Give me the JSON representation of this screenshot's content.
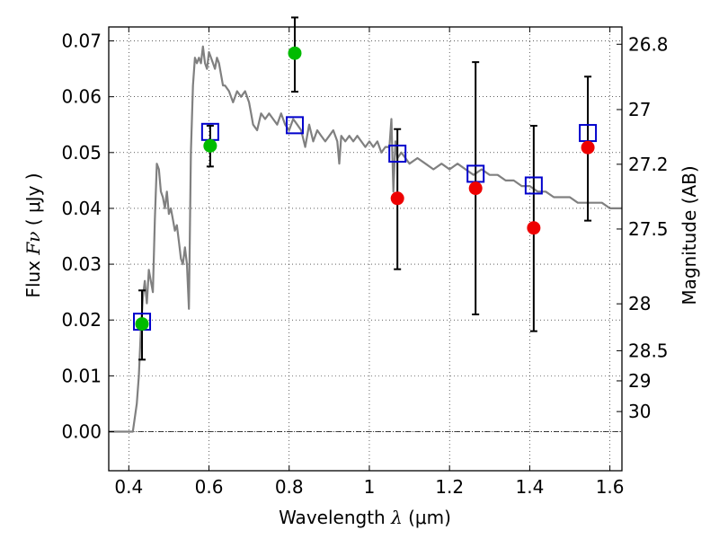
{
  "chart_data": {
    "type": "scatter",
    "xlabel": {
      "prefix": "Wavelength  ",
      "symbol": "λ",
      "units": "(μm)"
    },
    "ylabel": {
      "prefix": "Flux  ",
      "symbol": "Fν",
      "units": "( μJy )"
    },
    "y2label": "Magnitude (AB)",
    "xlim": [
      0.35,
      1.63
    ],
    "ylim": [
      -0.007,
      0.0725
    ],
    "grid": true,
    "xticks": [
      {
        "v": 0.4,
        "label": "0.4"
      },
      {
        "v": 0.6,
        "label": "0.6"
      },
      {
        "v": 0.8,
        "label": "0.8"
      },
      {
        "v": 1.0,
        "label": "1"
      },
      {
        "v": 1.2,
        "label": "1.2"
      },
      {
        "v": 1.4,
        "label": "1.4"
      },
      {
        "v": 1.6,
        "label": "1.6"
      }
    ],
    "yticks": [
      {
        "v": 0.0,
        "label": "0.00"
      },
      {
        "v": 0.01,
        "label": "0.01"
      },
      {
        "v": 0.02,
        "label": "0.02"
      },
      {
        "v": 0.03,
        "label": "0.03"
      },
      {
        "v": 0.04,
        "label": "0.04"
      },
      {
        "v": 0.05,
        "label": "0.05"
      },
      {
        "v": 0.06,
        "label": "0.06"
      },
      {
        "v": 0.07,
        "label": "0.07"
      }
    ],
    "magnitude_ticks": [
      {
        "v": 0.0694,
        "label": "26.8"
      },
      {
        "v": 0.0577,
        "label": "27"
      },
      {
        "v": 0.0479,
        "label": "27.2"
      },
      {
        "v": 0.0363,
        "label": "27.5"
      },
      {
        "v": 0.0229,
        "label": "28"
      },
      {
        "v": 0.0145,
        "label": "28.5"
      },
      {
        "v": 0.0091,
        "label": "29"
      },
      {
        "v": 0.0036,
        "label": "30"
      }
    ],
    "series": [
      {
        "kind": "line",
        "color": "#808080",
        "points": [
          [
            0.35,
            0.0
          ],
          [
            0.4,
            0.0
          ],
          [
            0.41,
            0.0
          ],
          [
            0.42,
            0.005
          ],
          [
            0.425,
            0.01
          ],
          [
            0.43,
            0.018
          ],
          [
            0.435,
            0.024
          ],
          [
            0.44,
            0.027
          ],
          [
            0.445,
            0.023
          ],
          [
            0.45,
            0.029
          ],
          [
            0.455,
            0.027
          ],
          [
            0.46,
            0.025
          ],
          [
            0.465,
            0.038
          ],
          [
            0.47,
            0.048
          ],
          [
            0.475,
            0.047
          ],
          [
            0.48,
            0.043
          ],
          [
            0.485,
            0.042
          ],
          [
            0.49,
            0.04
          ],
          [
            0.495,
            0.043
          ],
          [
            0.5,
            0.039
          ],
          [
            0.505,
            0.04
          ],
          [
            0.51,
            0.038
          ],
          [
            0.515,
            0.036
          ],
          [
            0.52,
            0.037
          ],
          [
            0.525,
            0.034
          ],
          [
            0.53,
            0.031
          ],
          [
            0.535,
            0.03
          ],
          [
            0.54,
            0.033
          ],
          [
            0.545,
            0.03
          ],
          [
            0.55,
            0.022
          ],
          [
            0.555,
            0.05
          ],
          [
            0.56,
            0.062
          ],
          [
            0.565,
            0.067
          ],
          [
            0.57,
            0.066
          ],
          [
            0.575,
            0.067
          ],
          [
            0.58,
            0.066
          ],
          [
            0.585,
            0.069
          ],
          [
            0.59,
            0.066
          ],
          [
            0.595,
            0.065
          ],
          [
            0.6,
            0.068
          ],
          [
            0.605,
            0.067
          ],
          [
            0.61,
            0.066
          ],
          [
            0.615,
            0.065
          ],
          [
            0.62,
            0.067
          ],
          [
            0.625,
            0.066
          ],
          [
            0.63,
            0.064
          ],
          [
            0.635,
            0.062
          ],
          [
            0.64,
            0.062
          ],
          [
            0.65,
            0.061
          ],
          [
            0.66,
            0.059
          ],
          [
            0.67,
            0.061
          ],
          [
            0.68,
            0.06
          ],
          [
            0.69,
            0.061
          ],
          [
            0.7,
            0.059
          ],
          [
            0.705,
            0.057
          ],
          [
            0.71,
            0.055
          ],
          [
            0.72,
            0.054
          ],
          [
            0.73,
            0.057
          ],
          [
            0.74,
            0.056
          ],
          [
            0.75,
            0.057
          ],
          [
            0.76,
            0.056
          ],
          [
            0.77,
            0.055
          ],
          [
            0.78,
            0.057
          ],
          [
            0.79,
            0.055
          ],
          [
            0.8,
            0.054
          ],
          [
            0.81,
            0.056
          ],
          [
            0.82,
            0.055
          ],
          [
            0.83,
            0.054
          ],
          [
            0.84,
            0.051
          ],
          [
            0.85,
            0.055
          ],
          [
            0.86,
            0.052
          ],
          [
            0.87,
            0.054
          ],
          [
            0.88,
            0.053
          ],
          [
            0.89,
            0.052
          ],
          [
            0.9,
            0.053
          ],
          [
            0.91,
            0.054
          ],
          [
            0.92,
            0.052
          ],
          [
            0.925,
            0.048
          ],
          [
            0.93,
            0.053
          ],
          [
            0.94,
            0.052
          ],
          [
            0.95,
            0.053
          ],
          [
            0.96,
            0.052
          ],
          [
            0.97,
            0.053
          ],
          [
            0.98,
            0.052
          ],
          [
            0.99,
            0.051
          ],
          [
            1.0,
            0.052
          ],
          [
            1.01,
            0.051
          ],
          [
            1.02,
            0.052
          ],
          [
            1.03,
            0.05
          ],
          [
            1.04,
            0.051
          ],
          [
            1.05,
            0.051
          ],
          [
            1.055,
            0.056
          ],
          [
            1.06,
            0.043
          ],
          [
            1.065,
            0.052
          ],
          [
            1.07,
            0.049
          ],
          [
            1.08,
            0.05
          ],
          [
            1.09,
            0.049
          ],
          [
            1.1,
            0.048
          ],
          [
            1.12,
            0.049
          ],
          [
            1.14,
            0.048
          ],
          [
            1.16,
            0.047
          ],
          [
            1.18,
            0.048
          ],
          [
            1.2,
            0.047
          ],
          [
            1.22,
            0.048
          ],
          [
            1.24,
            0.047
          ],
          [
            1.26,
            0.046
          ],
          [
            1.28,
            0.047
          ],
          [
            1.3,
            0.046
          ],
          [
            1.32,
            0.046
          ],
          [
            1.34,
            0.045
          ],
          [
            1.36,
            0.045
          ],
          [
            1.38,
            0.044
          ],
          [
            1.4,
            0.044
          ],
          [
            1.42,
            0.043
          ],
          [
            1.44,
            0.043
          ],
          [
            1.46,
            0.042
          ],
          [
            1.48,
            0.042
          ],
          [
            1.5,
            0.042
          ],
          [
            1.52,
            0.041
          ],
          [
            1.54,
            0.041
          ],
          [
            1.56,
            0.041
          ],
          [
            1.58,
            0.041
          ],
          [
            1.6,
            0.04
          ],
          [
            1.62,
            0.04
          ],
          [
            1.63,
            0.04
          ]
        ]
      },
      {
        "kind": "squares",
        "color": "#0000cc",
        "points": [
          [
            0.433,
            0.0197
          ],
          [
            0.603,
            0.0537
          ],
          [
            0.814,
            0.0549
          ],
          [
            1.07,
            0.0498
          ],
          [
            1.265,
            0.0462
          ],
          [
            1.41,
            0.0441
          ],
          [
            1.545,
            0.0535
          ]
        ]
      },
      {
        "kind": "points",
        "color": "#00bb00",
        "points": [
          [
            0.433,
            0.0193,
            0.0129,
            0.0253
          ],
          [
            0.603,
            0.0512,
            0.0475,
            0.0548
          ],
          [
            0.814,
            0.0678,
            0.0609,
            0.0742
          ]
        ]
      },
      {
        "kind": "points",
        "color": "#ee0000",
        "points": [
          [
            1.07,
            0.0418,
            0.0291,
            0.0542
          ],
          [
            1.265,
            0.0436,
            0.021,
            0.0662
          ],
          [
            1.41,
            0.0365,
            0.018,
            0.0548
          ],
          [
            1.545,
            0.0509,
            0.0378,
            0.0636
          ]
        ]
      }
    ]
  }
}
